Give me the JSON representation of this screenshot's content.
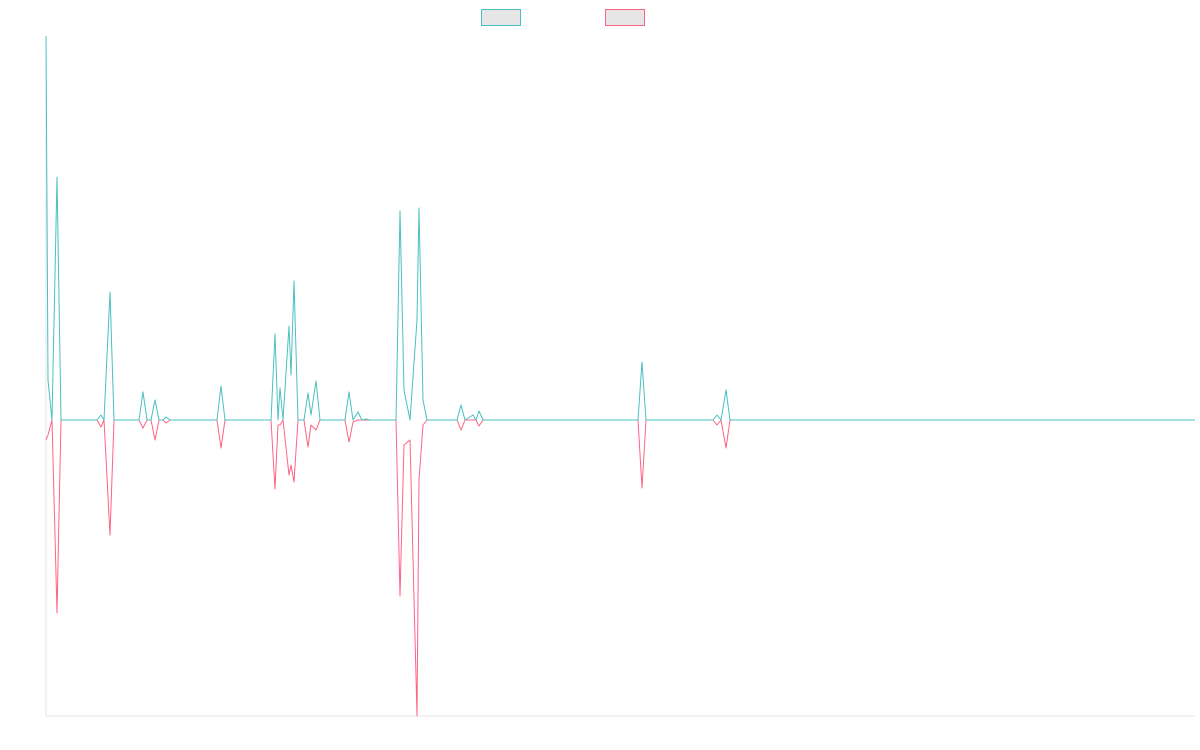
{
  "chart_data": {
    "type": "line",
    "x": [
      0,
      2,
      6,
      11,
      15,
      51,
      55,
      58,
      64,
      68,
      93,
      97,
      101,
      105,
      109,
      113,
      117,
      120,
      124,
      171,
      175,
      179,
      225,
      229,
      232,
      234,
      237,
      243,
      245,
      248,
      252,
      258,
      262,
      265,
      270,
      274,
      299,
      303,
      307,
      312,
      316,
      320,
      324,
      350,
      354,
      358,
      364,
      371,
      373,
      377,
      381,
      411,
      415,
      419,
      427,
      430,
      433,
      437,
      592,
      596,
      600,
      667,
      671,
      675,
      680,
      684,
      1149
    ],
    "xlim": [
      0,
      1149
    ],
    "ylim": [
      -296,
      384
    ],
    "series": [
      {
        "color": "#ff6384",
        "values": [
          -20,
          -15,
          0,
          -193,
          0,
          0,
          -7,
          0,
          -115,
          0,
          0,
          -8,
          0,
          0,
          -20,
          0,
          0,
          -3,
          0,
          0,
          -28,
          0,
          0,
          -69,
          -5,
          -5,
          0,
          -55,
          -45,
          -62,
          0,
          0,
          -27,
          -5,
          -10,
          0,
          0,
          -22,
          -2,
          0,
          0,
          0,
          0,
          0,
          -176,
          -25,
          -20,
          -296,
          -60,
          -5,
          0,
          0,
          -10,
          0,
          0,
          0,
          -6,
          0,
          0,
          -68,
          0,
          0,
          -5,
          0,
          -28,
          0,
          0
        ]
      },
      {
        "color": "#4bc0c0",
        "values": [
          384,
          40,
          0,
          243,
          0,
          0,
          5,
          0,
          128,
          0,
          0,
          28,
          0,
          0,
          20,
          0,
          0,
          3,
          0,
          0,
          34,
          0,
          0,
          86,
          0,
          32,
          0,
          94,
          45,
          139,
          0,
          0,
          27,
          5,
          39,
          0,
          0,
          28,
          0,
          8,
          0,
          1,
          0,
          0,
          209,
          30,
          0,
          100,
          212,
          20,
          0,
          0,
          15,
          0,
          5,
          0,
          9,
          0,
          0,
          58,
          0,
          0,
          5,
          0,
          30,
          0,
          0
        ]
      }
    ]
  }
}
